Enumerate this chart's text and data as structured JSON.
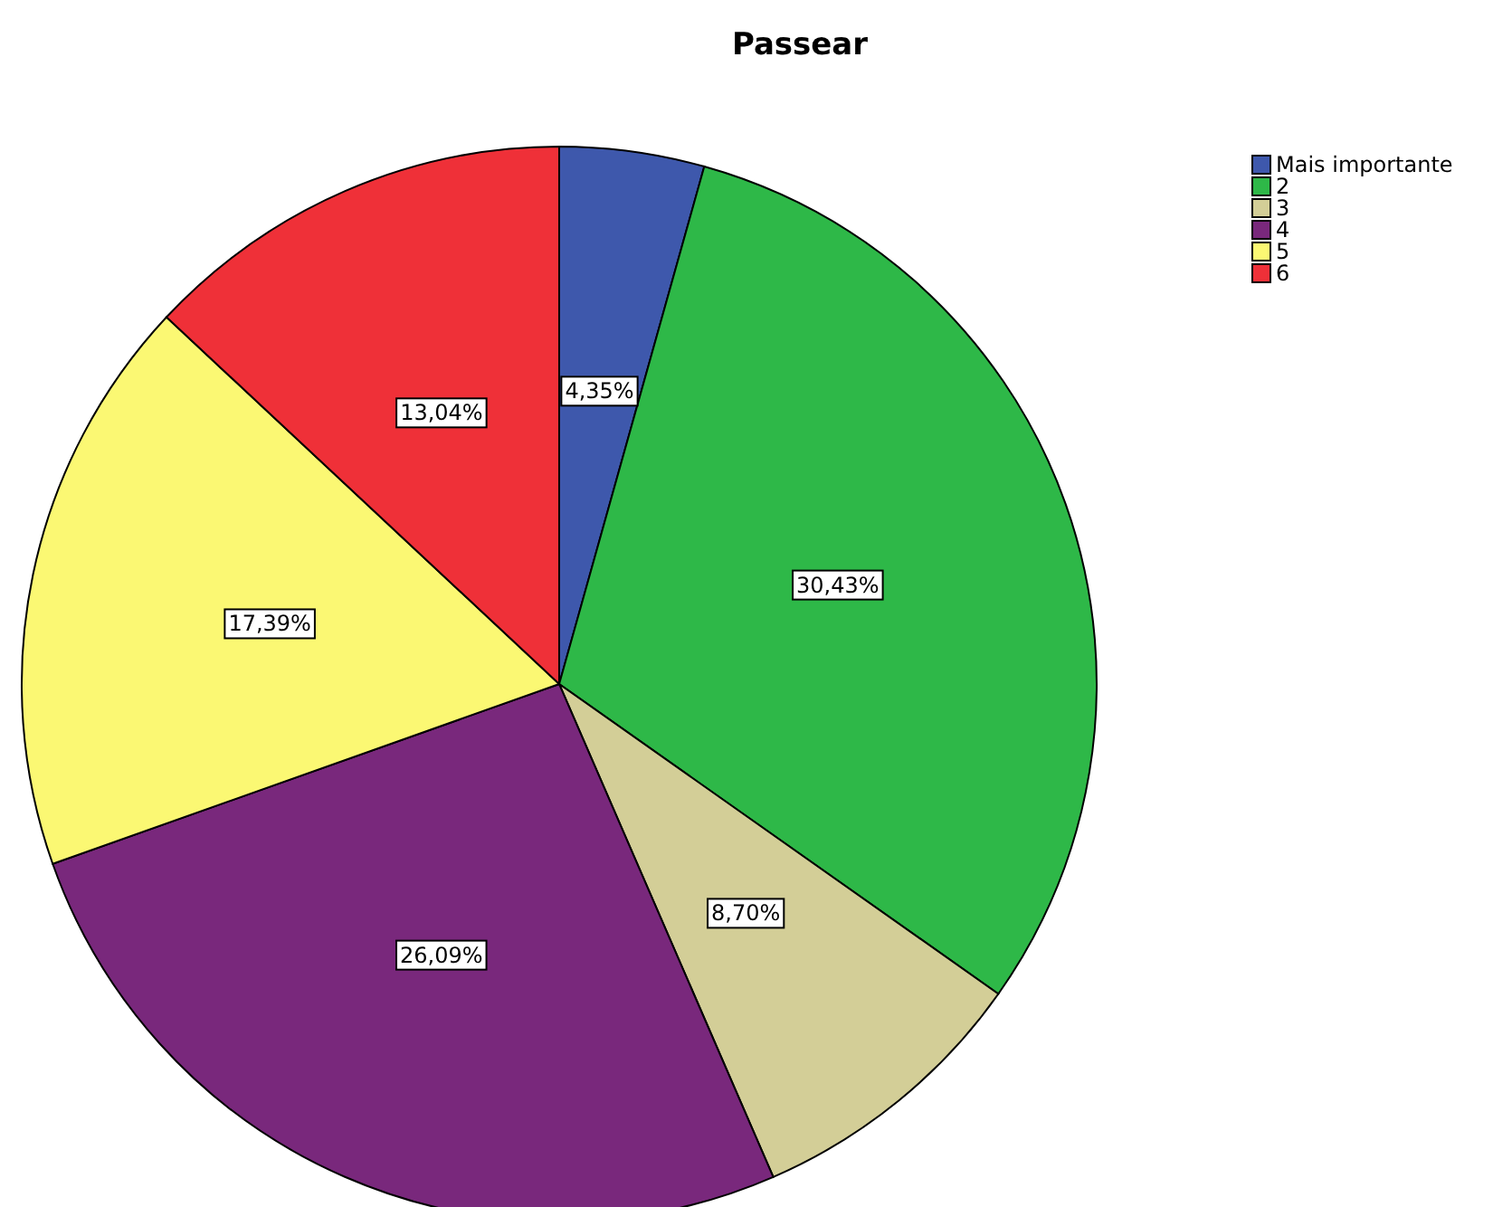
{
  "chart_data": {
    "type": "pie",
    "title": "Passear",
    "categories": [
      "Mais importante",
      "2",
      "3",
      "4",
      "5",
      "6"
    ],
    "values": [
      4.35,
      30.43,
      8.7,
      26.09,
      17.39,
      13.04
    ],
    "value_labels": [
      "4,35%",
      "30,43%",
      "8,70%",
      "26,09%",
      "17,39%",
      "13,04%"
    ],
    "colors": [
      "#3e58ac",
      "#2eb848",
      "#d3ce97",
      "#79287c",
      "#fbf873",
      "#ef3038"
    ],
    "legend": "top right"
  }
}
